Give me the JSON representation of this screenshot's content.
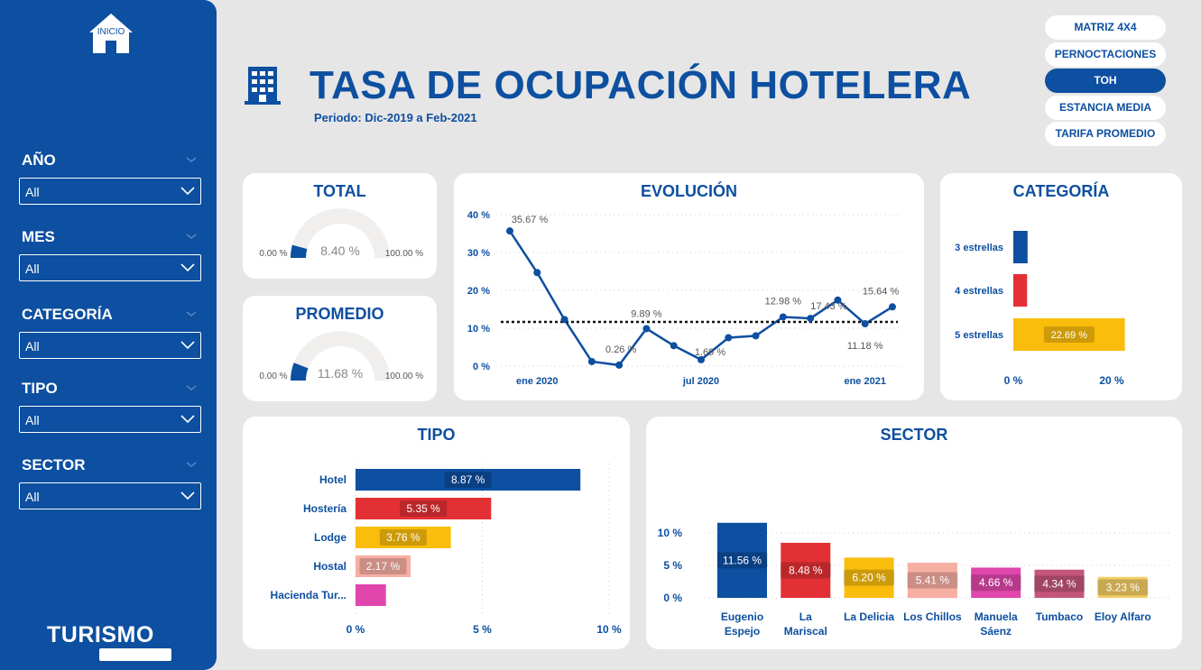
{
  "nav": {
    "home_label": "INICIO",
    "buttons": [
      "MATRIZ 4X4",
      "PERNOCTACIONES",
      "TOH",
      "ESTANCIA MEDIA",
      "TARIFA PROMEDIO"
    ],
    "active": "TOH"
  },
  "header": {
    "title": "TASA DE OCUPACIÓN HOTELERA",
    "subtitle": "Periodo: Dic-2019 a Feb-2021"
  },
  "filters": [
    {
      "label": "AÑO",
      "value": "All"
    },
    {
      "label": "MES",
      "value": "All"
    },
    {
      "label": "CATEGORÍA",
      "value": "All"
    },
    {
      "label": "TIPO",
      "value": "All"
    },
    {
      "label": "SECTOR",
      "value": "All"
    }
  ],
  "brand": "TURISMO",
  "colors": {
    "primary": "#0d4fa0",
    "red": "#e33034",
    "yellow": "#fbbd0b",
    "salmon": "#f7aea3",
    "pink": "#e046ab",
    "rose": "#c4557c",
    "lightyellow": "#f5cf65",
    "gauge_track": "#f0efee"
  },
  "chart_data": [
    {
      "type": "gauge",
      "title": "TOTAL",
      "value": 8.4,
      "value_label": "8.40 %",
      "min": 0,
      "max": 100,
      "min_label": "0.00 %",
      "max_label": "100.00 %"
    },
    {
      "type": "gauge",
      "title": "PROMEDIO",
      "value": 11.68,
      "value_label": "11.68 %",
      "min": 0,
      "max": 100,
      "min_label": "0.00 %",
      "max_label": "100.00 %"
    },
    {
      "type": "line",
      "title": "EVOLUCIÓN",
      "x": [
        "2019-12",
        "2020-01",
        "2020-02",
        "2020-03",
        "2020-04",
        "2020-05",
        "2020-06",
        "2020-07",
        "2020-08",
        "2020-09",
        "2020-10",
        "2020-11",
        "2020-12",
        "2021-01",
        "2021-02"
      ],
      "values": [
        35.67,
        24.7,
        12.3,
        1.2,
        0.26,
        9.89,
        5.4,
        1.69,
        7.5,
        8.0,
        12.98,
        12.6,
        17.43,
        11.18,
        15.64
      ],
      "data_labels": [
        {
          "index": 0,
          "label": "35.67 %"
        },
        {
          "index": 4,
          "label": "0.26 %"
        },
        {
          "index": 5,
          "label": "9.89 %"
        },
        {
          "index": 7,
          "label": "1.69 %"
        },
        {
          "index": 10,
          "label": "12.98 %"
        },
        {
          "index": 12,
          "label": "17.43 %"
        },
        {
          "index": 13,
          "label": "11.18 %"
        },
        {
          "index": 14,
          "label": "15.64 %"
        }
      ],
      "ylim": [
        0,
        40
      ],
      "y_ticks": [
        0,
        10,
        20,
        30,
        40
      ],
      "y_tick_labels": [
        "0 %",
        "10 %",
        "20 %",
        "30 %",
        "40 %"
      ],
      "x_tick_labels": [
        {
          "index": 1,
          "label": "ene 2020"
        },
        {
          "index": 7,
          "label": "jul 2020"
        },
        {
          "index": 13,
          "label": "ene 2021"
        }
      ],
      "average_line": 11.68,
      "grid": true
    },
    {
      "type": "bar",
      "title": "CATEGORÍA",
      "orientation": "horizontal",
      "categories": [
        "3 estrellas",
        "4 estrellas",
        "5 estrellas"
      ],
      "values": [
        2.9,
        2.8,
        22.69
      ],
      "value_labels": [
        "",
        "",
        "22.69 %"
      ],
      "bar_colors": [
        "#0d4fa0",
        "#e33034",
        "#fbbd0b"
      ],
      "xlim": [
        0,
        25
      ],
      "x_ticks": [
        0,
        20
      ],
      "x_tick_labels": [
        "0 %",
        "20 %"
      ]
    },
    {
      "type": "bar",
      "title": "TIPO",
      "orientation": "horizontal",
      "categories": [
        "Hotel",
        "Hostería",
        "Lodge",
        "Hostal",
        "Hacienda Tur..."
      ],
      "values": [
        8.87,
        5.35,
        3.76,
        2.17,
        1.2
      ],
      "value_labels": [
        "8.87 %",
        "5.35 %",
        "3.76 %",
        "2.17 %",
        ""
      ],
      "bar_colors": [
        "#0d4fa0",
        "#e33034",
        "#fbbd0b",
        "#f7aea3",
        "#e046ab"
      ],
      "xlim": [
        0,
        10
      ],
      "x_ticks": [
        0,
        5,
        10
      ],
      "x_tick_labels": [
        "0 %",
        "5 %",
        "10 %"
      ],
      "grid": true
    },
    {
      "type": "bar",
      "title": "SECTOR",
      "orientation": "vertical",
      "categories": [
        "Eugenio Espejo",
        "La Mariscal",
        "La Delicia",
        "Los Chillos",
        "Manuela Sáenz",
        "Tumbaco",
        "Eloy Alfaro"
      ],
      "values": [
        11.56,
        8.48,
        6.2,
        5.41,
        4.66,
        4.34,
        3.23
      ],
      "value_labels": [
        "11.56 %",
        "8.48 %",
        "6.20 %",
        "5.41 %",
        "4.66 %",
        "4.34 %",
        "3.23 %"
      ],
      "bar_colors": [
        "#0d4fa0",
        "#e33034",
        "#fbbd0b",
        "#f7aea3",
        "#e046ab",
        "#c4557c",
        "#f5cf65"
      ],
      "ylim": [
        0,
        12
      ],
      "y_ticks": [
        0,
        5,
        10
      ],
      "y_tick_labels": [
        "0 %",
        "5 %",
        "10 %"
      ],
      "grid": true
    }
  ]
}
